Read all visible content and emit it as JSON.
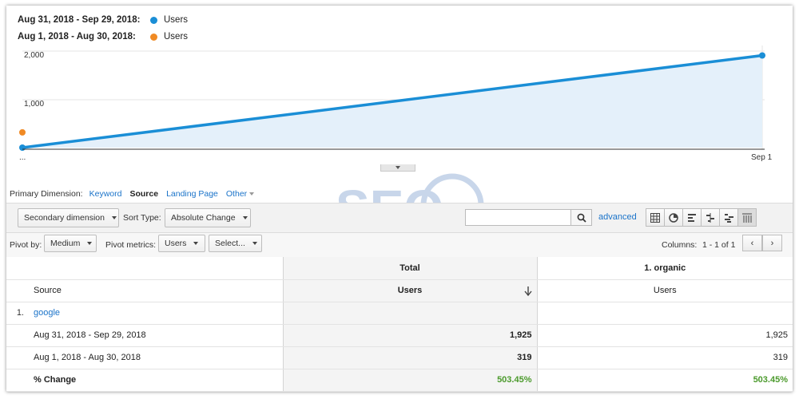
{
  "legend": [
    {
      "date": "Aug 31, 2018 - Sep 29, 2018:",
      "metric": "Users",
      "color": "#1a8ed6"
    },
    {
      "date": "Aug 1, 2018 - Aug 30, 2018:",
      "metric": "Users",
      "color": "#f08a24"
    }
  ],
  "chart_data": {
    "type": "area",
    "x_labels": [
      "...",
      "Sep 1"
    ],
    "y_ticks": [
      "2,000",
      "1,000"
    ],
    "ylim": [
      0,
      2000
    ],
    "series": [
      {
        "name": "Users",
        "period": "Aug 31, 2018 - Sep 29, 2018",
        "values": [
          0,
          1925
        ],
        "color": "#1a8ed6"
      },
      {
        "name": "Users",
        "period": "Aug 1, 2018 - Aug 30, 2018",
        "values": [
          319
        ],
        "color": "#f08a24"
      }
    ]
  },
  "primary_dimension": {
    "label": "Primary Dimension:",
    "options": [
      "Keyword",
      "Source",
      "Landing Page",
      "Other"
    ],
    "selected": "Source"
  },
  "toolbar1": {
    "secondary_dimension": "Secondary dimension",
    "sort_type_label": "Sort Type:",
    "sort_type_value": "Absolute Change",
    "search_placeholder": "",
    "advanced": "advanced",
    "view_icons": [
      "grid-view-icon",
      "pie-view-icon",
      "bar-view-icon",
      "comparison-view-icon",
      "term-cloud-icon",
      "pivot-view-icon"
    ]
  },
  "toolbar2": {
    "pivot_by_label": "Pivot by:",
    "pivot_by_value": "Medium",
    "pivot_metrics_label": "Pivot metrics:",
    "pivot_metric_1": "Users",
    "pivot_metric_2": "Select...",
    "columns_label": "Columns:",
    "columns_range": "1 - 1 of 1",
    "prev": "‹",
    "next": "›"
  },
  "table": {
    "group_headers": {
      "total": "Total",
      "organic": "1. organic"
    },
    "col_headers": {
      "source": "Source",
      "total_users": "Users",
      "organic_users": "Users"
    },
    "row": {
      "index": "1.",
      "source": "google"
    },
    "periods": [
      {
        "label": "Aug 31, 2018 - Sep 29, 2018",
        "total": "1,925",
        "organic": "1,925"
      },
      {
        "label": "Aug 1, 2018 - Aug 30, 2018",
        "total": "319",
        "organic": "319"
      }
    ],
    "change": {
      "label": "% Change",
      "total": "503.45%",
      "organic": "503.45%"
    }
  }
}
